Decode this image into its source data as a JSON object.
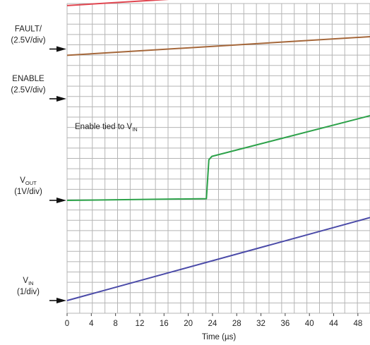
{
  "chart_data": {
    "type": "line",
    "xlabel": "Time (µs)",
    "xlim": [
      0,
      50
    ],
    "x_ticks": [
      0,
      4,
      8,
      12,
      16,
      20,
      24,
      28,
      32,
      36,
      40,
      44,
      48
    ],
    "annotation": {
      "text": "Enable tied to V",
      "sub": "IN"
    },
    "colors": {
      "grid": "#b5b5b5",
      "fault": "#e0454f",
      "enable": "#a5673a",
      "vout": "#2da24a",
      "vin": "#4a4aa8"
    },
    "series": [
      {
        "key": "fault",
        "label_main": "FAULT/",
        "label_sub": "",
        "label_unit": "(2.5V/div)",
        "x": [
          0,
          50
        ],
        "y": [
          1.4,
          2.0
        ]
      },
      {
        "key": "enable",
        "label_main": "ENABLE",
        "label_sub": "",
        "label_unit": "(2.5V/div)",
        "x": [
          0,
          50
        ],
        "y": [
          1.4,
          2.0
        ]
      },
      {
        "key": "vout",
        "label_main": "V",
        "label_sub": "OUT",
        "label_unit": "(1V/div)",
        "x": [
          0,
          23.0,
          23.4,
          23.9,
          50
        ],
        "y": [
          0,
          0.1,
          2.4,
          2.6,
          5.0
        ]
      },
      {
        "key": "vin",
        "label_main": "V",
        "label_sub": "IN",
        "label_unit": "(1/div)",
        "x": [
          0,
          50
        ],
        "y": [
          0,
          4.9
        ]
      }
    ]
  }
}
